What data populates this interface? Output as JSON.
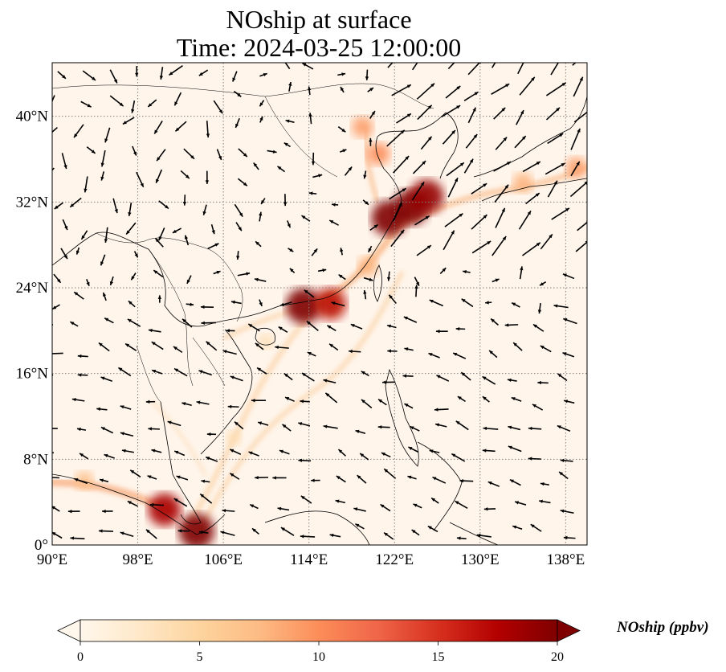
{
  "title_line1": "NOship at surface",
  "title_line2": "Time: 2024-03-25 12:00:00",
  "map": {
    "lon_range": [
      90,
      140
    ],
    "lat_range": [
      0,
      45
    ],
    "lon_ticks": [
      {
        "v": 90,
        "l": "90°E"
      },
      {
        "v": 98,
        "l": "98°E"
      },
      {
        "v": 106,
        "l": "106°E"
      },
      {
        "v": 114,
        "l": "114°E"
      },
      {
        "v": 122,
        "l": "122°E"
      },
      {
        "v": 130,
        "l": "130°E"
      },
      {
        "v": 138,
        "l": "138°E"
      }
    ],
    "lat_ticks": [
      {
        "v": 0,
        "l": "0°"
      },
      {
        "v": 8,
        "l": "8°N"
      },
      {
        "v": 16,
        "l": "16°N"
      },
      {
        "v": 24,
        "l": "24°N"
      },
      {
        "v": 32,
        "l": "32°N"
      },
      {
        "v": 40,
        "l": "40°N"
      }
    ],
    "gridlines": "dotted",
    "background_color": "#fff5eb"
  },
  "colorbar": {
    "label": "NOship (ppbv)",
    "min": 0,
    "max": 20,
    "ticks": [
      0,
      5,
      10,
      15,
      20
    ],
    "colormap": "OrRd",
    "extend": "both",
    "colors": [
      "#fff7ec",
      "#fee8c8",
      "#fdd49e",
      "#fdbb84",
      "#fc8d59",
      "#ef6548",
      "#d7301f",
      "#b30000",
      "#7f0000"
    ]
  },
  "plumes": [
    {
      "lon": 103.5,
      "lat": 1.3,
      "value": 20
    },
    {
      "lon": 100.5,
      "lat": 3.3,
      "value": 18
    },
    {
      "lon": 113.5,
      "lat": 22.3,
      "value": 20
    },
    {
      "lon": 116,
      "lat": 22.5,
      "value": 17
    },
    {
      "lon": 121.5,
      "lat": 30.5,
      "value": 20
    },
    {
      "lon": 123.5,
      "lat": 31.5,
      "value": 20
    },
    {
      "lon": 125,
      "lat": 32.5,
      "value": 19
    },
    {
      "lon": 120.5,
      "lat": 36.5,
      "value": 10
    },
    {
      "lon": 119,
      "lat": 39,
      "value": 9
    },
    {
      "lon": 119.5,
      "lat": 26,
      "value": 8
    },
    {
      "lon": 134,
      "lat": 33.8,
      "value": 8
    },
    {
      "lon": 139,
      "lat": 35.2,
      "value": 9
    },
    {
      "lon": 93,
      "lat": 6,
      "value": 7
    },
    {
      "lon": 107,
      "lat": 10,
      "value": 4
    },
    {
      "lon": 110,
      "lat": 19,
      "value": 4
    }
  ]
}
